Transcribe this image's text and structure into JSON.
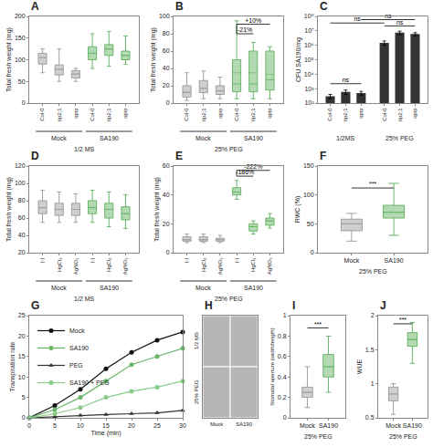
{
  "chart_data": [
    {
      "type": "box",
      "title": "A",
      "ylabel": "Total fresh weight (mg)",
      "xlabel": "1/2 MS",
      "group_labels": [
        "Mock",
        "SA190"
      ],
      "categories": [
        "Col-0",
        "tip2;1",
        "qpip",
        "Col-0",
        "tip2;1",
        "qpip"
      ],
      "colors": [
        "#a0a0a0",
        "#a0a0a0",
        "#a0a0a0",
        "#6ab56a",
        "#6ab56a",
        "#6ab56a"
      ],
      "medians": [
        105,
        78,
        67,
        115,
        125,
        110
      ],
      "q1": [
        90,
        65,
        58,
        100,
        110,
        100
      ],
      "q3": [
        115,
        88,
        75,
        130,
        135,
        120
      ],
      "whislo": [
        70,
        50,
        50,
        80,
        85,
        90
      ],
      "whishi": [
        125,
        125,
        80,
        160,
        165,
        155
      ],
      "means": [
        105,
        78,
        67,
        115,
        125,
        110
      ],
      "ylim": [
        0,
        200
      ],
      "yticks": [
        0,
        50,
        100,
        150,
        200
      ],
      "grid": false
    },
    {
      "type": "box",
      "title": "B",
      "ylabel": "Total fresh weight (mg)",
      "xlabel": "25% PEG",
      "group_labels": [
        "Mock",
        "SA190"
      ],
      "categories": [
        "Col-0",
        "tip2;1",
        "qpip",
        "Col-0",
        "tip2;1",
        "qpip"
      ],
      "colors": [
        "#a0a0a0",
        "#a0a0a0",
        "#a0a0a0",
        "#6ab56a",
        "#6ab56a",
        "#6ab56a"
      ],
      "medians": [
        12,
        17,
        14,
        22,
        22,
        27
      ],
      "q1": [
        7,
        12,
        10,
        13,
        13,
        15
      ],
      "q3": [
        20,
        26,
        20,
        50,
        60,
        60
      ],
      "whislo": [
        3,
        5,
        5,
        5,
        5,
        5
      ],
      "whishi": [
        35,
        37,
        30,
        95,
        70,
        65
      ],
      "means": [
        13,
        17,
        14,
        35,
        35,
        33
      ],
      "ylim": [
        0,
        100
      ],
      "yticks": [
        0,
        20,
        40,
        60,
        80,
        100
      ],
      "grid": false,
      "annotations": [
        {
          "text": "-21%",
          "x": [
            3,
            4
          ],
          "y": 80
        },
        {
          "text": "+10%",
          "x": [
            3,
            5
          ],
          "y": 91
        }
      ],
      "lines": [
        {
          "x": [
            3,
            3
          ],
          "y": [
            80,
            91
          ]
        }
      ]
    },
    {
      "type": "bar",
      "title": "C",
      "ylabel": "CFU SA190/mg",
      "categories": [
        "Col-0",
        "tip2;1",
        "qpip",
        "Col-0",
        "tip2;1",
        "qpip"
      ],
      "group_labels": [
        "1/2MS",
        "25% PEG"
      ],
      "colors": [
        "#333333",
        "#333333",
        "#333333",
        "#333333",
        "#333333",
        "#333333"
      ],
      "values": [
        300,
        600,
        500,
        1500000,
        7500000,
        6000000
      ],
      "errors": [
        100,
        200,
        150,
        500000,
        2000000,
        1500000
      ],
      "log": "y",
      "ylim": [
        100,
        100000000
      ],
      "yticks": [
        {
          "value": 100,
          "label": "10²"
        },
        {
          "value": 1000,
          "label": "10³"
        },
        {
          "value": 10000,
          "label": "10⁴"
        },
        {
          "value": 100000,
          "label": "10⁵"
        },
        {
          "value": 1000000,
          "label": "10⁶"
        },
        {
          "value": 10000000,
          "label": "10⁷"
        },
        {
          "value": 100000000,
          "label": "10⁸"
        }
      ],
      "grid": false,
      "annotations": [
        {
          "text": "ns",
          "x": [
            0,
            2
          ],
          "y": 2200
        },
        {
          "text": "ns",
          "x": [
            3,
            5
          ],
          "y": 22000000
        },
        {
          "text": "ns",
          "x": [
            0,
            3
          ],
          "y": 35000000
        },
        {
          "text": "ns",
          "x": [
            2,
            5
          ],
          "y": 60000000
        }
      ]
    },
    {
      "type": "box",
      "title": "D",
      "ylabel": "Total fresh weight (mg)",
      "xlabel": "1/2 MS",
      "group_labels": [
        "Mock",
        "SA190"
      ],
      "categories": [
        "(-)",
        "HgCl₂",
        "AgNO₃",
        "(-)",
        "HgCl₂",
        "AgNO₃"
      ],
      "colors": [
        "#a0a0a0",
        "#a0a0a0",
        "#a0a0a0",
        "#6ab56a",
        "#6ab56a",
        "#6ab56a"
      ],
      "medians": [
        72,
        70,
        70,
        72,
        70,
        65
      ],
      "q1": [
        65,
        63,
        63,
        65,
        60,
        58
      ],
      "q3": [
        80,
        77,
        77,
        80,
        77,
        73
      ],
      "whislo": [
        55,
        55,
        55,
        55,
        50,
        48
      ],
      "whishi": [
        92,
        90,
        88,
        92,
        90,
        87
      ],
      "means": [
        72,
        70,
        70,
        72,
        70,
        65
      ],
      "ylim": [
        20,
        120
      ],
      "yticks": [
        20,
        40,
        60,
        80,
        100,
        120
      ],
      "grid": false
    },
    {
      "type": "box",
      "title": "E",
      "ylabel": "Total fresh weight (mg)",
      "xlabel": "25% PEG",
      "group_labels": [
        "Mock",
        "SA190"
      ],
      "categories": [
        "(-)",
        "HgCl₂",
        "AgNO₃",
        "(-)",
        "HgCl₂",
        "AgNO₃"
      ],
      "colors": [
        "#a0a0a0",
        "#a0a0a0",
        "#a0a0a0",
        "#6ab56a",
        "#6ab56a",
        "#6ab56a"
      ],
      "medians": [
        9,
        9,
        9,
        42,
        18,
        22
      ],
      "q1": [
        8,
        8,
        8,
        40,
        15,
        19
      ],
      "q3": [
        11,
        11,
        10,
        45,
        20,
        24
      ],
      "whislo": [
        7,
        7,
        7,
        37,
        13,
        17
      ],
      "whishi": [
        13,
        13,
        12,
        50,
        22,
        27
      ],
      "means": [
        9,
        9,
        9,
        42,
        18,
        22
      ],
      "ylim": [
        0,
        60
      ],
      "yticks": [
        0,
        20,
        40,
        60
      ],
      "grid": false,
      "annotations": [
        {
          "text": "-186%",
          "x": [
            3,
            4
          ],
          "y": 53
        },
        {
          "text": "-222%",
          "x": [
            3,
            5
          ],
          "y": 57
        }
      ],
      "lines": [
        {
          "x": [
            3,
            3
          ],
          "y": [
            53,
            57
          ]
        }
      ]
    },
    {
      "type": "box",
      "title": "F",
      "ylabel": "RWC (%)",
      "xlabel": "25% PEG",
      "categories": [
        "Mock",
        "SA190"
      ],
      "colors": [
        "#a0a0a0",
        "#6ab56a"
      ],
      "medians": [
        50,
        70
      ],
      "q1": [
        38,
        60
      ],
      "q3": [
        58,
        82
      ],
      "whislo": [
        20,
        30
      ],
      "whishi": [
        68,
        120
      ],
      "means": [
        50,
        70
      ],
      "ylim": [
        0,
        150
      ],
      "yticks": [
        0,
        50,
        100,
        150
      ],
      "grid": false,
      "annotations": [
        {
          "text": "***",
          "x": [
            0,
            1
          ],
          "y": 112
        }
      ]
    },
    {
      "type": "line",
      "title": "G",
      "ylabel": "Transpiration rate",
      "xlabel": "Time (min)",
      "xlim": [
        0,
        30
      ],
      "ylim": [
        0,
        25
      ],
      "xticks": [
        0,
        5,
        10,
        15,
        20,
        25,
        30
      ],
      "yticks": [
        0,
        5,
        10,
        15,
        20,
        25
      ],
      "grid": false,
      "legend": "upper left",
      "series": [
        {
          "name": "Mock",
          "color": "#111111",
          "marker": "circle",
          "line_style": "solid",
          "x": [
            0,
            5,
            10,
            15,
            20,
            25,
            30
          ],
          "values": [
            0,
            3,
            7,
            12,
            16,
            19,
            21
          ]
        },
        {
          "name": "SA190",
          "color": "#6ab56a",
          "marker": "circle",
          "line_style": "solid",
          "x": [
            0,
            5,
            10,
            15,
            20,
            25,
            30
          ],
          "values": [
            0,
            2,
            5,
            9,
            13,
            15,
            17
          ]
        },
        {
          "name": "PEG",
          "color": "#333333",
          "marker": "triangle",
          "line_style": "solid",
          "x": [
            0,
            5,
            10,
            15,
            20,
            25,
            30
          ],
          "values": [
            0,
            0.3,
            0.6,
            0.8,
            1.0,
            1.2,
            1.8
          ]
        },
        {
          "name": "SA190 + PEG",
          "color": "#88cc88",
          "marker": "circle",
          "line_style": "solid",
          "x": [
            0,
            5,
            10,
            15,
            20,
            25,
            30
          ],
          "values": [
            0,
            1,
            2.5,
            5,
            6.5,
            7.5,
            9
          ]
        }
      ]
    },
    {
      "type": "image",
      "title": "H",
      "categories": [
        "Mock",
        "SA190"
      ],
      "row_labels": [
        "1/2 MS",
        "25% PEG"
      ],
      "color": "#b5b5b5",
      "tick_labels": false,
      "grid": false
    },
    {
      "type": "box",
      "title": "I",
      "ylabel": "Stomatal aperture (width/length)",
      "xlabel": "25% PEG",
      "categories": [
        "Mock",
        "SA190"
      ],
      "colors": [
        "#a0a0a0",
        "#6ab56a"
      ],
      "medians": [
        0.25,
        0.5
      ],
      "q1": [
        0.2,
        0.4
      ],
      "q3": [
        0.3,
        0.62
      ],
      "whislo": [
        0.1,
        0.25
      ],
      "whishi": [
        0.5,
        0.8
      ],
      "means": [
        0.25,
        0.5
      ],
      "ylim": [
        0,
        1
      ],
      "yticks": [
        0,
        0.2,
        0.4,
        0.6,
        0.8,
        1
      ],
      "grid": false,
      "annotations": [
        {
          "text": "***",
          "x": [
            0,
            1
          ],
          "y": 0.88
        }
      ]
    },
    {
      "type": "box",
      "title": "J",
      "ylabel": "WUE",
      "xlabel": "25% PEG",
      "categories": [
        "Mock",
        "SA190"
      ],
      "colors": [
        "#a0a0a0",
        "#6ab56a"
      ],
      "medians": [
        0.85,
        1.65
      ],
      "q1": [
        0.75,
        1.55
      ],
      "q3": [
        0.95,
        1.75
      ],
      "whislo": [
        0.55,
        1.3
      ],
      "whishi": [
        1.0,
        1.9
      ],
      "means": [
        0.85,
        1.65
      ],
      "ylim": [
        0.5,
        2
      ],
      "yticks": [
        0.5,
        1,
        1.5,
        2
      ],
      "grid": false,
      "annotations": [
        {
          "text": "***",
          "x": [
            0,
            1
          ],
          "y": 1.88
        }
      ]
    }
  ]
}
